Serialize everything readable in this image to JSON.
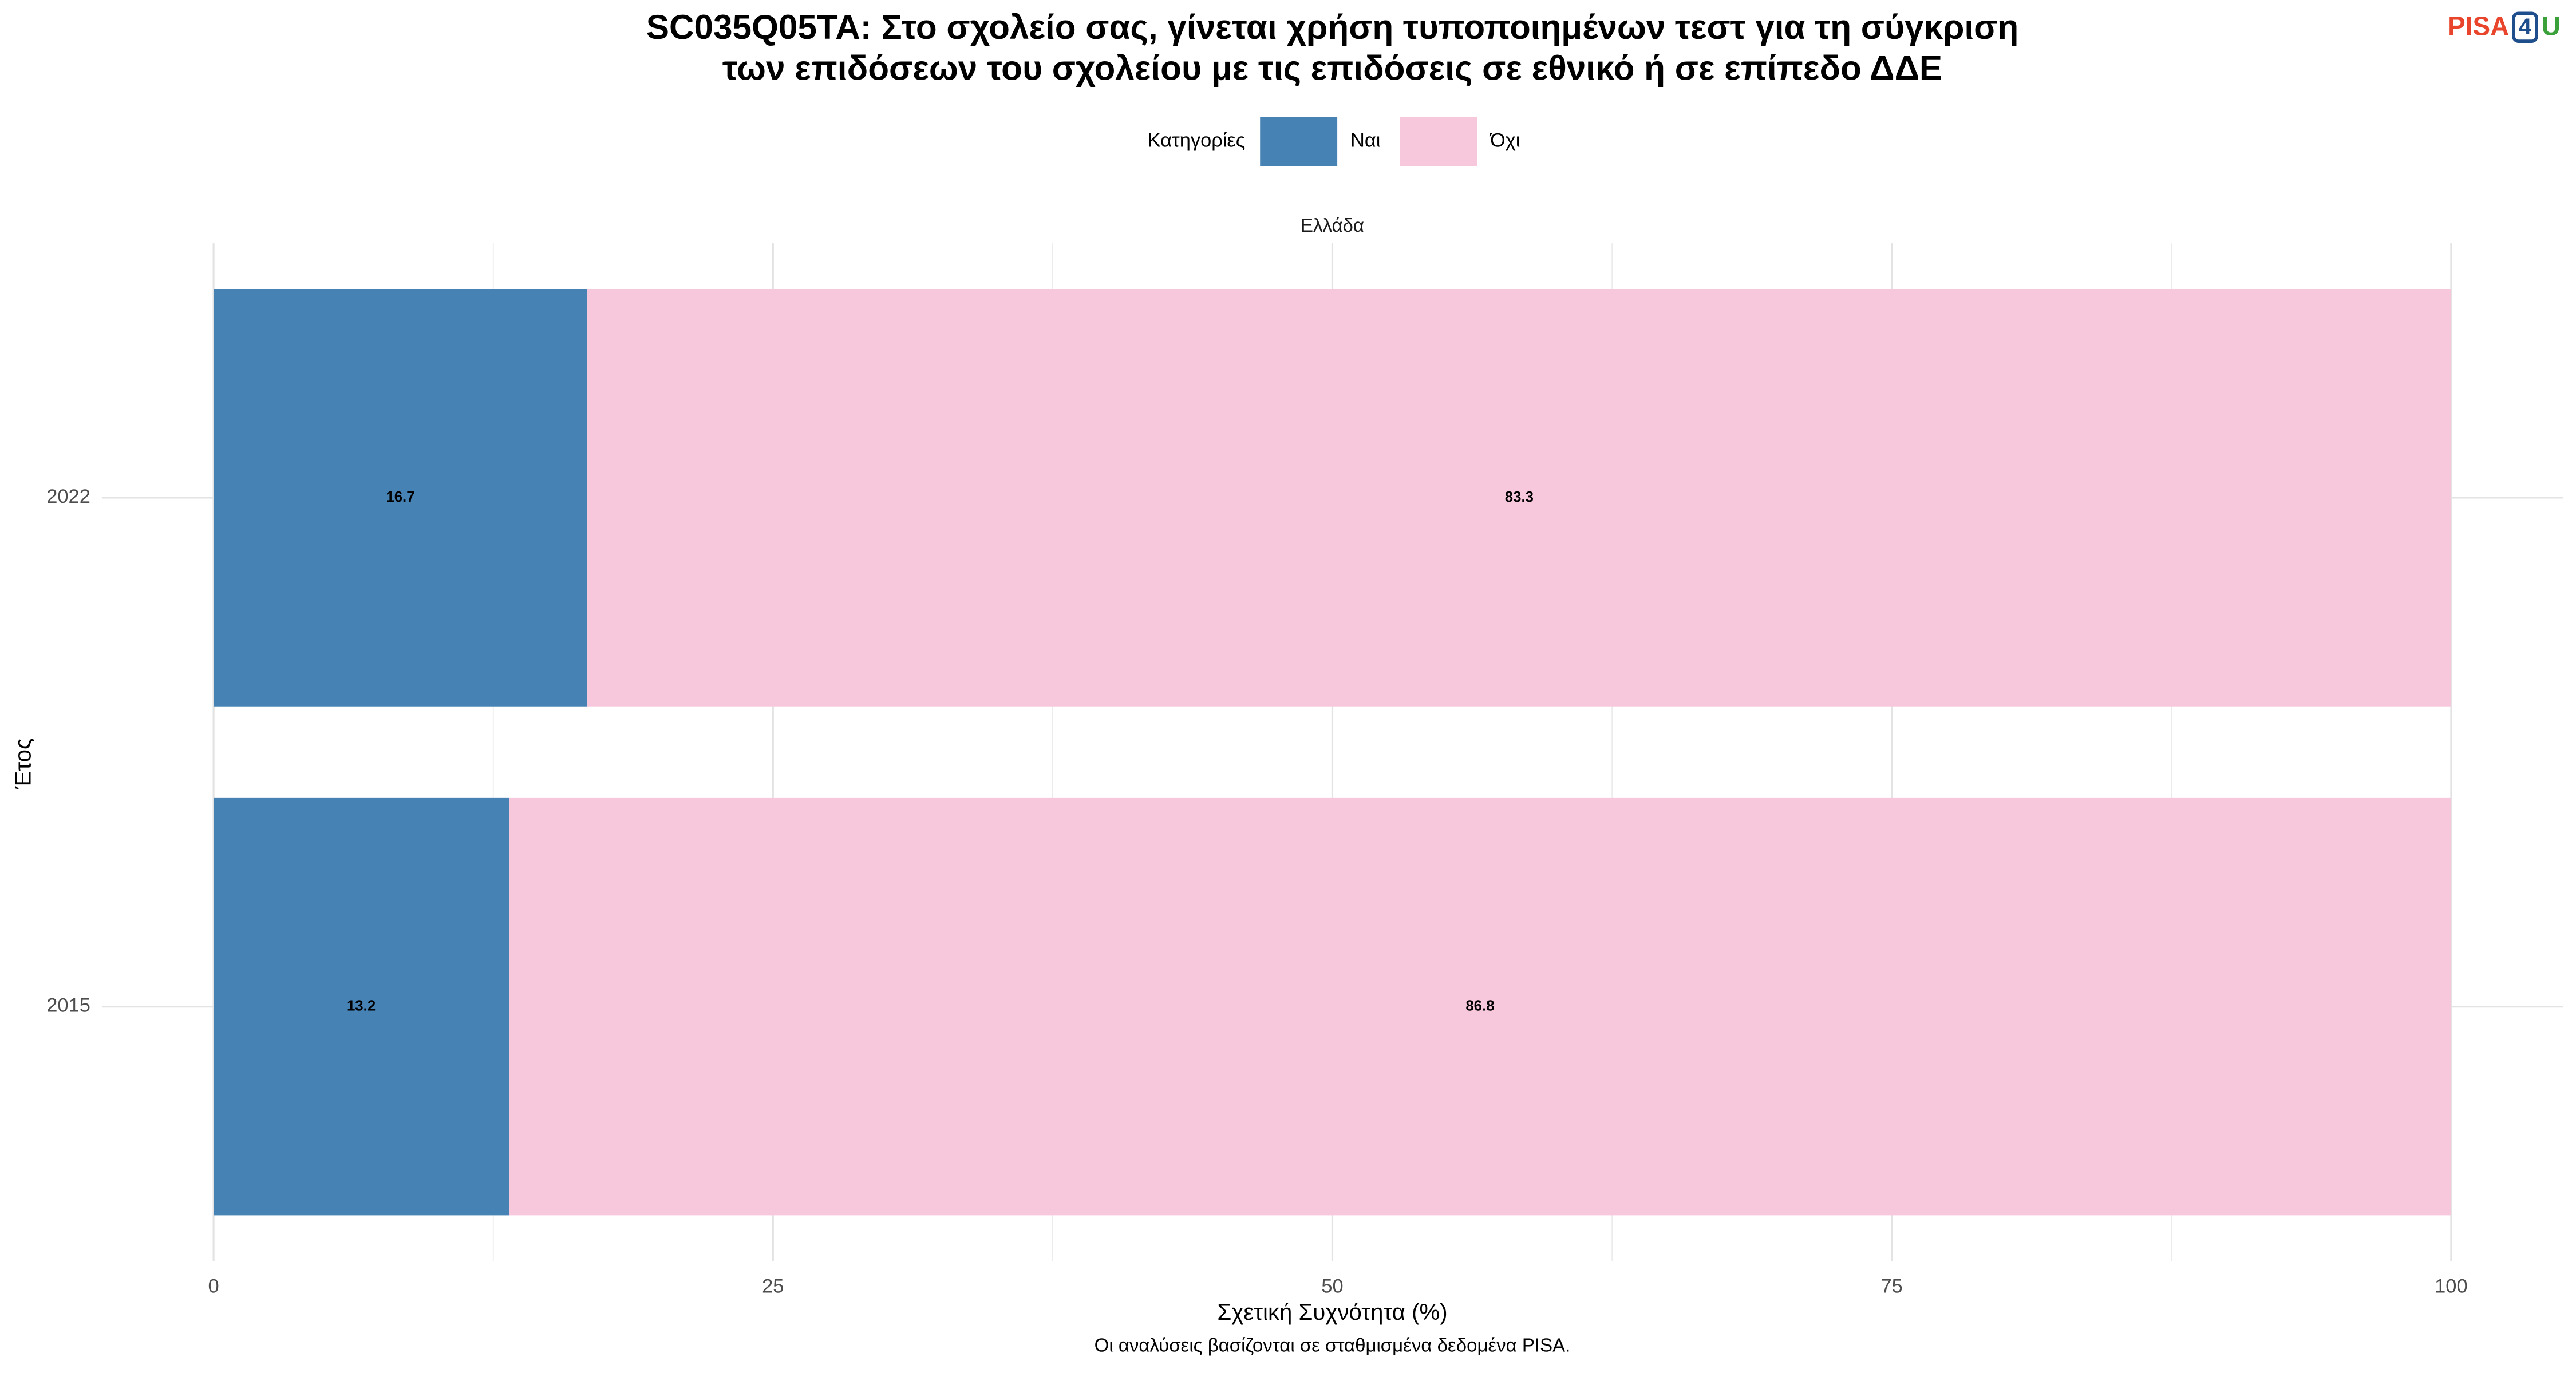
{
  "chart_data": {
    "type": "stacked-barh",
    "title": [
      "SC035Q05TA: Στο σχολείο σας, γίνεται χρήση τυποποιημένων τεστ για τη σύγκριση",
      "των επιδόσεων του σχολείου με τις επιδόσεις σε εθνικό ή σε επίπεδο ΔΔΕ"
    ],
    "logo": [
      "PISA",
      "4",
      "U"
    ],
    "legend_title": "Κατηγορίες",
    "panel_title": "Ελλάδα",
    "x_label": "Σχετική Συχνότητα (%)",
    "y_label": "Έτος",
    "caption": "Οι αναλύσεις βασίζονται σε σταθμισμένα δεδομένα PISA.",
    "categories": [
      "2022",
      "2015"
    ],
    "series": [
      {
        "name": "Ναι",
        "color": "#4682b4",
        "values": [
          16.7,
          13.2
        ]
      },
      {
        "name": "Όχι",
        "color": "#f7c8dc",
        "values": [
          83.3,
          86.8
        ]
      }
    ],
    "xlim": [
      0,
      100
    ],
    "xticks": [
      0,
      25,
      50,
      75,
      100
    ],
    "grid": true
  }
}
